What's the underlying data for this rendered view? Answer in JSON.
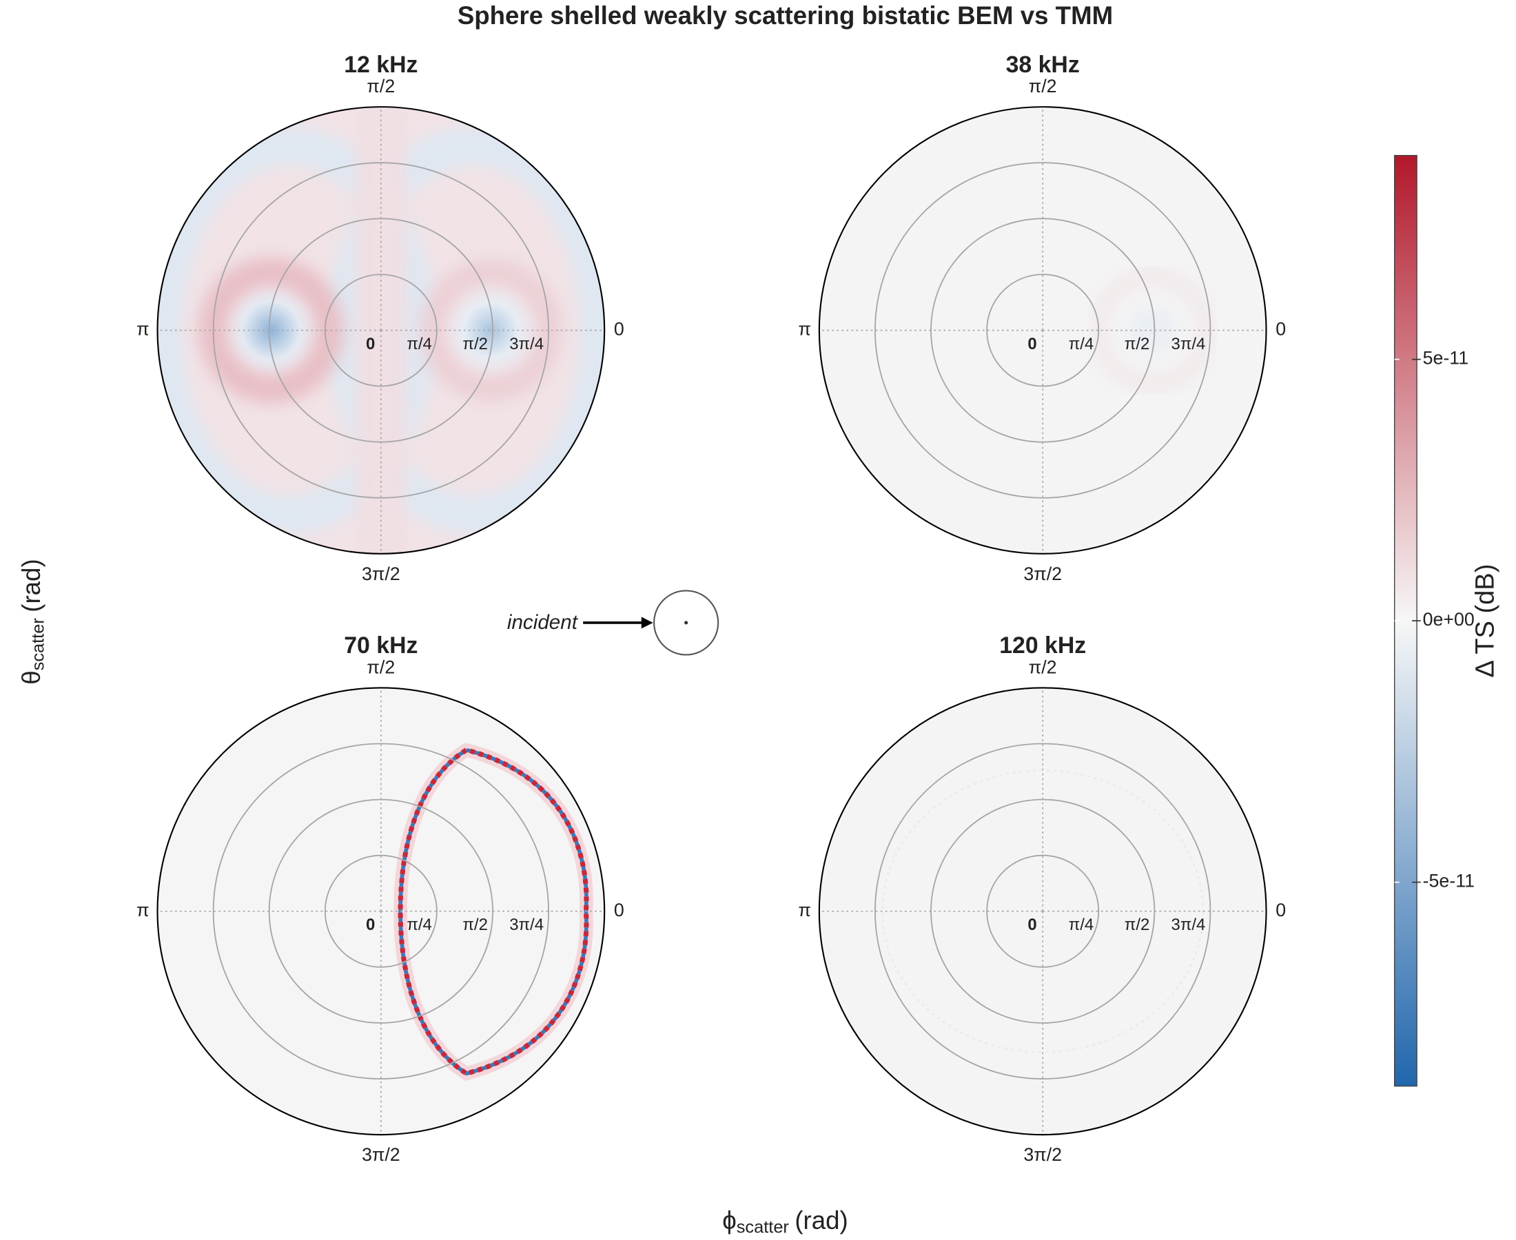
{
  "chart_data": {
    "type": "polar_heatmap",
    "title": "Sphere shelled weakly scattering bistatic BEM vs TMM",
    "xlabel_symbol": "ϕ",
    "xlabel_sub": "scatter",
    "xlabel_unit": "(rad)",
    "ylabel_symbol": "θ",
    "ylabel_sub": "scatter",
    "ylabel_unit": "(rad)",
    "annotation": "incident",
    "panels": [
      {
        "title": "12 kHz"
      },
      {
        "title": "38 kHz"
      },
      {
        "title": "70 kHz"
      },
      {
        "title": "120 kHz"
      }
    ],
    "angle_ticks": [
      {
        "value": 0,
        "label": "0"
      },
      {
        "value": 1.5708,
        "label": "π/2"
      },
      {
        "value": 3.1416,
        "label": "π"
      },
      {
        "value": 4.7124,
        "label": "3π/2"
      }
    ],
    "rlim": [
      0,
      3.1416
    ],
    "rticks": [
      {
        "value": 0,
        "label": "0"
      },
      {
        "value": 0.7854,
        "label": "π/4"
      },
      {
        "value": 1.5708,
        "label": "π/2"
      },
      {
        "value": 2.3562,
        "label": "3π/4"
      }
    ],
    "colorbar": {
      "label": "Δ TS (dB)",
      "lim": [
        -8.9e-11,
        8.9e-11
      ],
      "ticks": [
        {
          "value": 5e-11,
          "label": "5e-11"
        },
        {
          "value": 0,
          "label": "0e+00"
        },
        {
          "value": -5e-11,
          "label": "-5e-11"
        }
      ],
      "colors": [
        "#2166ac",
        "#f7f7f7",
        "#b2182b"
      ]
    }
  }
}
